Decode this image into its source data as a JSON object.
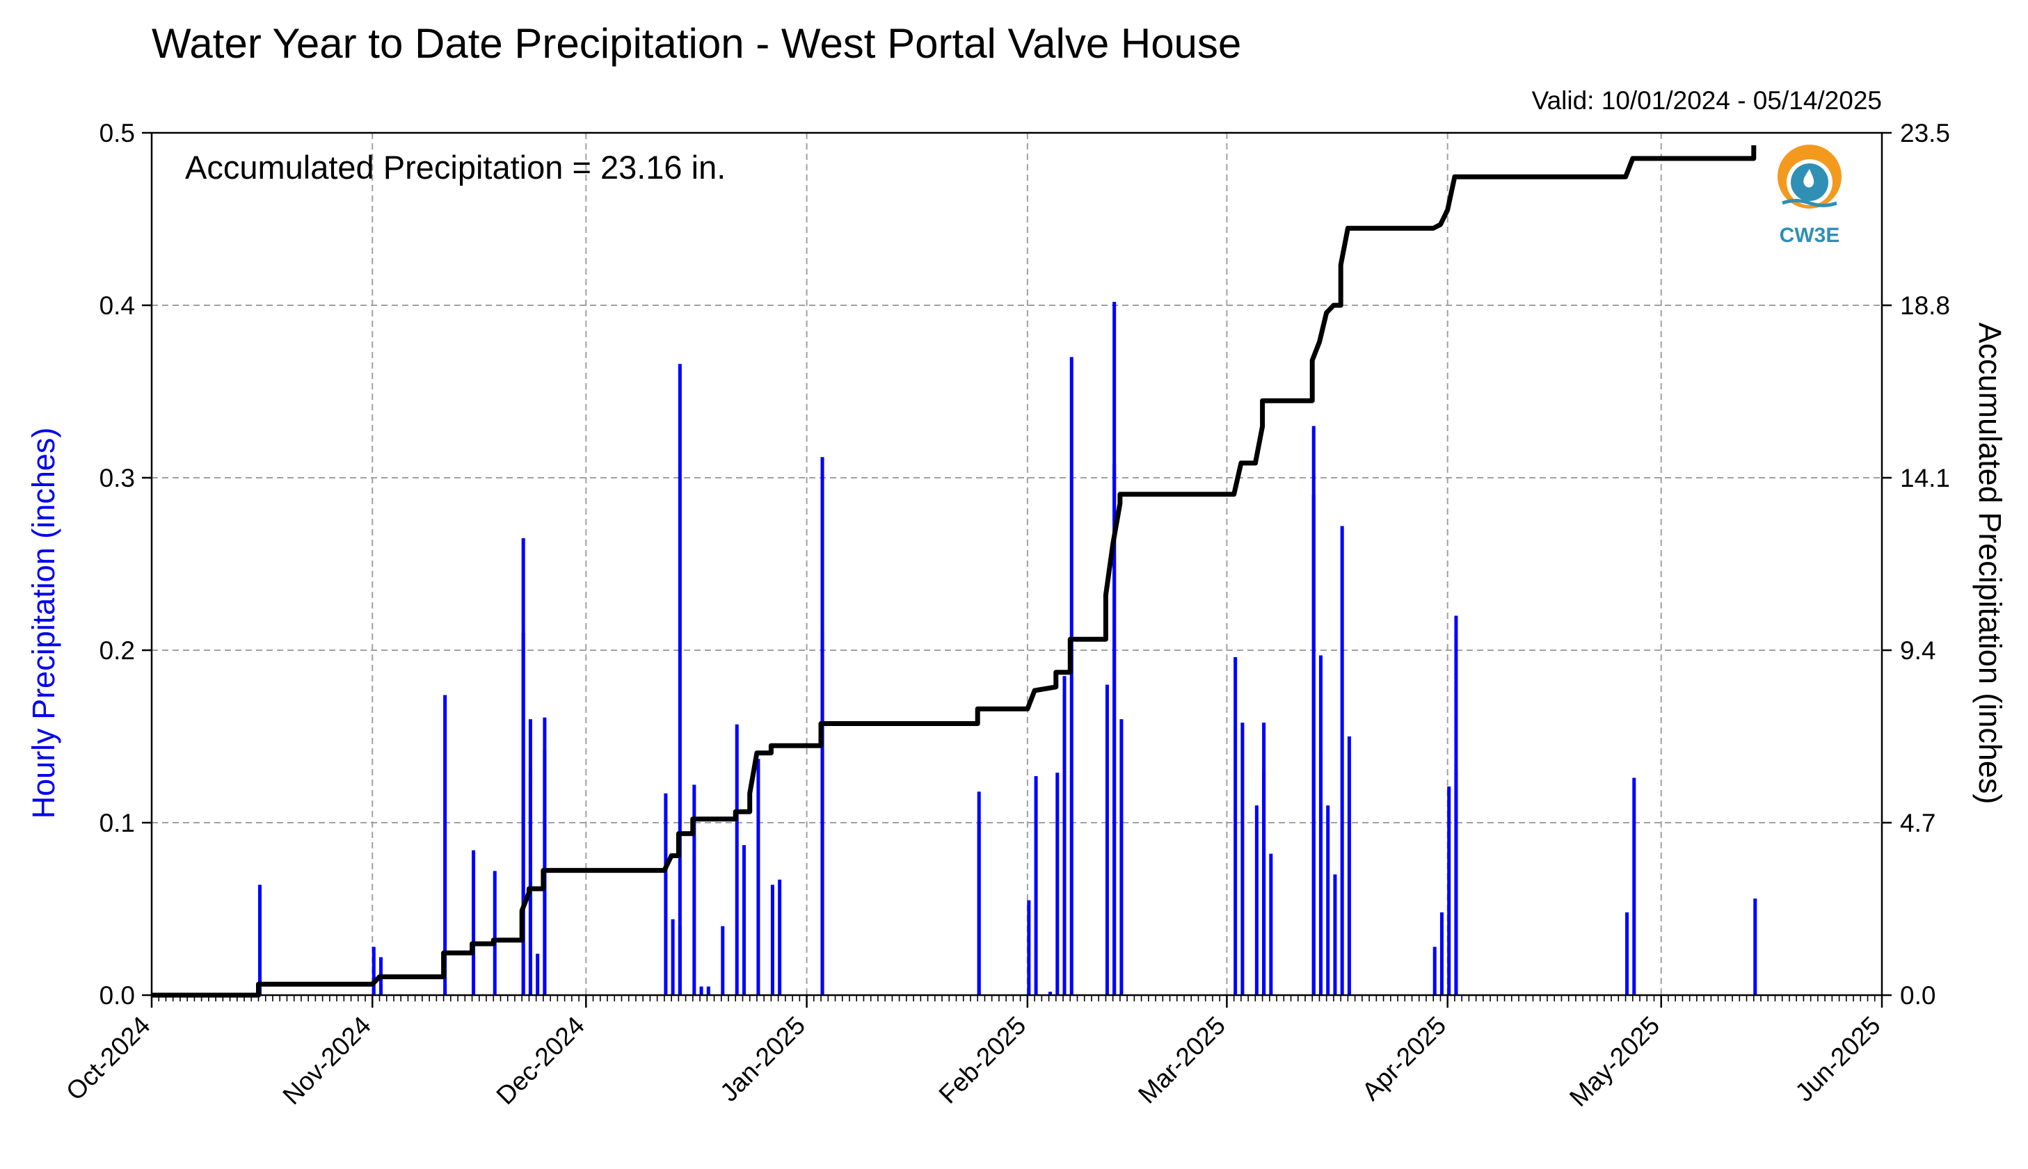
{
  "chart_data": {
    "type": "bar+line",
    "title": "Water Year to Date Precipitation - West Portal Valve House",
    "subtitle": "Valid: 10/01/2024 - 05/14/2025",
    "annotation": "Accumulated Precipitation = 23.16 in.",
    "ylabel_left": "Hourly Precipitation (inches)",
    "ylabel_right": "Accumulated Precipitation (inches)",
    "left_axis_color": "#0000ee",
    "bar_color": "#0000ff",
    "line_color": "#000000",
    "grid": true,
    "ylim_left": [
      0,
      0.5
    ],
    "ylim_right": [
      0,
      23.5
    ],
    "xlim": [
      "2024-10-01",
      "2025-06-01"
    ],
    "x_tick_labels": [
      "Oct-2024",
      "Nov-2024",
      "Dec-2024",
      "Jan-2025",
      "Feb-2025",
      "Mar-2025",
      "Apr-2025",
      "May-2025",
      "Jun-2025"
    ],
    "y_tick_labels_left": [
      "0.0",
      "0.1",
      "0.2",
      "0.3",
      "0.4",
      "0.5"
    ],
    "y_tick_labels_right": [
      "0.0",
      "4.7",
      "9.4",
      "14.1",
      "18.8",
      "23.5"
    ],
    "logo_text": "CW3E",
    "series": [
      {
        "type": "bar",
        "values": [
          [
            "2024-10-16",
            0.064
          ],
          [
            "2024-11-01",
            0.028
          ],
          [
            "2024-11-02",
            0.022
          ],
          [
            "2024-11-11",
            0.174
          ],
          [
            "2024-11-15",
            0.084
          ],
          [
            "2024-11-18",
            0.072
          ],
          [
            "2024-11-22",
            0.265
          ],
          [
            "2024-11-22",
            0.21
          ],
          [
            "2024-11-23",
            0.16
          ],
          [
            "2024-11-23",
            0.13
          ],
          [
            "2024-11-24",
            0.024
          ],
          [
            "2024-11-25",
            0.161
          ],
          [
            "2024-11-25",
            0.142
          ],
          [
            "2024-12-12",
            0.117
          ],
          [
            "2024-12-13",
            0.044
          ],
          [
            "2024-12-14",
            0.366
          ],
          [
            "2024-12-14",
            0.04
          ],
          [
            "2024-12-16",
            0.122
          ],
          [
            "2024-12-17",
            0.005
          ],
          [
            "2024-12-18",
            0.005
          ],
          [
            "2024-12-20",
            0.04
          ],
          [
            "2024-12-22",
            0.157
          ],
          [
            "2024-12-23",
            0.087
          ],
          [
            "2024-12-25",
            0.137
          ],
          [
            "2024-12-27",
            0.064
          ],
          [
            "2024-12-28",
            0.067
          ],
          [
            "2025-01-03",
            0.312
          ],
          [
            "2025-01-03",
            0.21
          ],
          [
            "2025-01-25",
            0.118
          ],
          [
            "2025-01-25",
            0.1
          ],
          [
            "2025-02-01",
            0.055
          ],
          [
            "2025-02-02",
            0.127
          ],
          [
            "2025-02-04",
            0.002
          ],
          [
            "2025-02-05",
            0.129
          ],
          [
            "2025-02-06",
            0.185
          ],
          [
            "2025-02-07",
            0.37
          ],
          [
            "2025-02-12",
            0.18
          ],
          [
            "2025-02-13",
            0.402
          ],
          [
            "2025-02-13",
            0.308
          ],
          [
            "2025-02-14",
            0.16
          ],
          [
            "2025-03-02",
            0.196
          ],
          [
            "2025-03-03",
            0.158
          ],
          [
            "2025-03-05",
            0.11
          ],
          [
            "2025-03-06",
            0.13
          ],
          [
            "2025-03-06",
            0.158
          ],
          [
            "2025-03-07",
            0.082
          ],
          [
            "2025-03-13",
            0.33
          ],
          [
            "2025-03-13",
            0.29
          ],
          [
            "2025-03-14",
            0.197
          ],
          [
            "2025-03-14",
            0.14
          ],
          [
            "2025-03-15",
            0.11
          ],
          [
            "2025-03-16",
            0.07
          ],
          [
            "2025-03-17",
            0.272
          ],
          [
            "2025-03-18",
            0.15
          ],
          [
            "2025-03-30",
            0.028
          ],
          [
            "2025-03-31",
            0.048
          ],
          [
            "2025-04-01",
            0.121
          ],
          [
            "2025-04-02",
            0.22
          ],
          [
            "2025-04-02",
            0.13
          ],
          [
            "2025-04-26",
            0.048
          ],
          [
            "2025-04-27",
            0.126
          ],
          [
            "2025-05-14",
            0.056
          ]
        ]
      },
      {
        "type": "line",
        "values": [
          [
            "2024-10-01",
            0.0
          ],
          [
            "2024-10-16",
            0.0
          ],
          [
            "2024-10-16",
            0.3
          ],
          [
            "2024-11-01",
            0.3
          ],
          [
            "2024-11-02",
            0.5
          ],
          [
            "2024-11-11",
            0.5
          ],
          [
            "2024-11-11",
            1.15
          ],
          [
            "2024-11-15",
            1.15
          ],
          [
            "2024-11-15",
            1.4
          ],
          [
            "2024-11-18",
            1.4
          ],
          [
            "2024-11-18",
            1.5
          ],
          [
            "2024-11-22",
            1.5
          ],
          [
            "2024-11-22",
            2.3
          ],
          [
            "2024-11-23",
            2.8
          ],
          [
            "2024-11-23",
            2.9
          ],
          [
            "2024-11-25",
            2.9
          ],
          [
            "2024-11-25",
            3.4
          ],
          [
            "2024-11-26",
            3.4
          ],
          [
            "2024-12-12",
            3.4
          ],
          [
            "2024-12-13",
            3.8
          ],
          [
            "2024-12-14",
            3.8
          ],
          [
            "2024-12-14",
            4.4
          ],
          [
            "2024-12-16",
            4.4
          ],
          [
            "2024-12-16",
            4.8
          ],
          [
            "2024-12-22",
            4.8
          ],
          [
            "2024-12-22",
            5.0
          ],
          [
            "2024-12-24",
            5.0
          ],
          [
            "2024-12-24",
            5.5
          ],
          [
            "2024-12-25",
            6.6
          ],
          [
            "2024-12-27",
            6.6
          ],
          [
            "2024-12-27",
            6.8
          ],
          [
            "2025-01-03",
            6.8
          ],
          [
            "2025-01-03",
            7.4
          ],
          [
            "2025-01-25",
            7.4
          ],
          [
            "2025-01-25",
            7.8
          ],
          [
            "2025-02-01",
            7.8
          ],
          [
            "2025-02-02",
            8.3
          ],
          [
            "2025-02-05",
            8.4
          ],
          [
            "2025-02-05",
            8.8
          ],
          [
            "2025-02-07",
            8.8
          ],
          [
            "2025-02-07",
            9.7
          ],
          [
            "2025-02-12",
            9.7
          ],
          [
            "2025-02-12",
            10.9
          ],
          [
            "2025-02-13",
            12.3
          ],
          [
            "2025-02-14",
            13.4
          ],
          [
            "2025-02-14",
            13.65
          ],
          [
            "2025-03-02",
            13.65
          ],
          [
            "2025-03-03",
            14.5
          ],
          [
            "2025-03-05",
            14.5
          ],
          [
            "2025-03-06",
            15.5
          ],
          [
            "2025-03-06",
            16.2
          ],
          [
            "2025-03-13",
            16.2
          ],
          [
            "2025-03-13",
            17.3
          ],
          [
            "2025-03-14",
            17.8
          ],
          [
            "2025-03-15",
            18.6
          ],
          [
            "2025-03-16",
            18.8
          ],
          [
            "2025-03-17",
            18.8
          ],
          [
            "2025-03-17",
            19.9
          ],
          [
            "2025-03-18",
            20.9
          ],
          [
            "2025-03-30",
            20.9
          ],
          [
            "2025-03-31",
            21.0
          ],
          [
            "2025-04-01",
            21.4
          ],
          [
            "2025-04-02",
            22.3
          ],
          [
            "2025-04-26",
            22.3
          ],
          [
            "2025-04-27",
            22.8
          ],
          [
            "2025-05-14",
            22.8
          ],
          [
            "2025-05-14",
            23.16
          ]
        ]
      }
    ]
  }
}
